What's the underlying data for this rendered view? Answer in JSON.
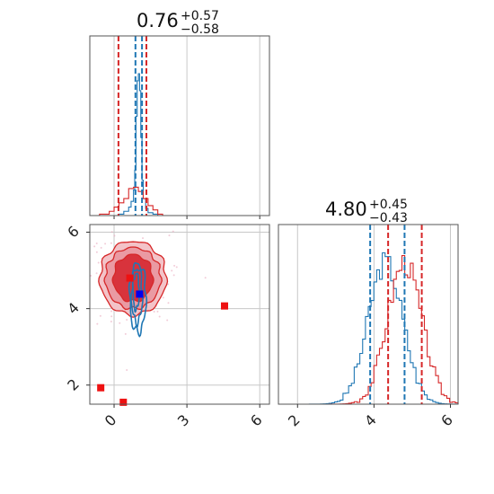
{
  "chart_data": [
    {
      "type": "histogram",
      "panel": "param1-marginal",
      "title": {
        "value": "0.76",
        "plus": "+0.57",
        "minus": "−0.58"
      },
      "xlim": [
        -1.0,
        6.4
      ],
      "grid": true,
      "vlines": {
        "red": [
          0.18,
          1.33
        ],
        "blue": [
          0.88,
          1.15
        ]
      },
      "series": [
        {
          "color": "#1f77b4",
          "bins": [
            -1.0,
            -0.8,
            -0.6,
            -0.4,
            -0.2,
            0.0,
            0.2,
            0.4,
            0.6,
            0.7,
            0.8,
            0.85,
            0.9,
            0.95,
            1.0,
            1.05,
            1.1,
            1.15,
            1.2,
            1.3,
            1.4,
            1.6,
            1.8,
            2.0
          ],
          "counts": [
            0,
            0,
            0,
            0,
            0,
            0,
            0.01,
            0.03,
            0.06,
            0.1,
            0.18,
            0.32,
            0.7,
            0.95,
            1.0,
            0.88,
            0.55,
            0.25,
            0.12,
            0.05,
            0.02,
            0.01,
            0
          ]
        },
        {
          "color": "#d62728",
          "bins": [
            -1.0,
            -0.6,
            -0.2,
            0.0,
            0.2,
            0.4,
            0.6,
            0.8,
            1.0,
            1.2,
            1.4,
            1.6,
            1.8,
            2.0,
            2.2
          ],
          "counts": [
            0,
            0.01,
            0.03,
            0.06,
            0.09,
            0.12,
            0.19,
            0.2,
            0.17,
            0.12,
            0.07,
            0.04,
            0.01,
            0
          ]
        }
      ]
    },
    {
      "type": "scatter",
      "panel": "joint",
      "xlim": [
        -1.0,
        6.4
      ],
      "ylim": [
        1.5,
        6.2
      ],
      "xticks": [
        "0",
        "3",
        "6"
      ],
      "xtick_values": [
        0,
        3,
        6
      ],
      "yticks": [
        "2",
        "4",
        "6"
      ],
      "ytick_values": [
        2,
        4,
        6
      ],
      "grid": true,
      "markers": [
        {
          "color": "#ee1111",
          "x": 0.65,
          "y": 4.8
        },
        {
          "color": "#0000ee",
          "x": 1.05,
          "y": 4.38
        },
        {
          "color": "#ee1111",
          "x": 4.55,
          "y": 4.07
        },
        {
          "color": "#ee1111",
          "x": -0.55,
          "y": 1.93
        },
        {
          "color": "#ee1111",
          "x": 0.38,
          "y": 1.55
        }
      ],
      "red_contour_center": [
        0.78,
        4.8
      ],
      "blue_contour_center": [
        0.98,
        4.4
      ]
    },
    {
      "type": "histogram",
      "panel": "param2-marginal",
      "title": {
        "value": "4.80",
        "plus": "+0.45",
        "minus": "−0.43"
      },
      "xlim": [
        1.5,
        6.2
      ],
      "xticks": [
        "2",
        "4",
        "6"
      ],
      "xtick_values": [
        2,
        4,
        6
      ],
      "grid": true,
      "vlines": {
        "red": [
          4.37,
          5.25
        ],
        "blue": [
          3.9,
          4.8
        ]
      },
      "series": [
        {
          "color": "#1f77b4",
          "center": 4.3,
          "sigma": 0.45
        },
        {
          "color": "#d62728",
          "center": 4.8,
          "sigma": 0.45
        }
      ]
    }
  ]
}
